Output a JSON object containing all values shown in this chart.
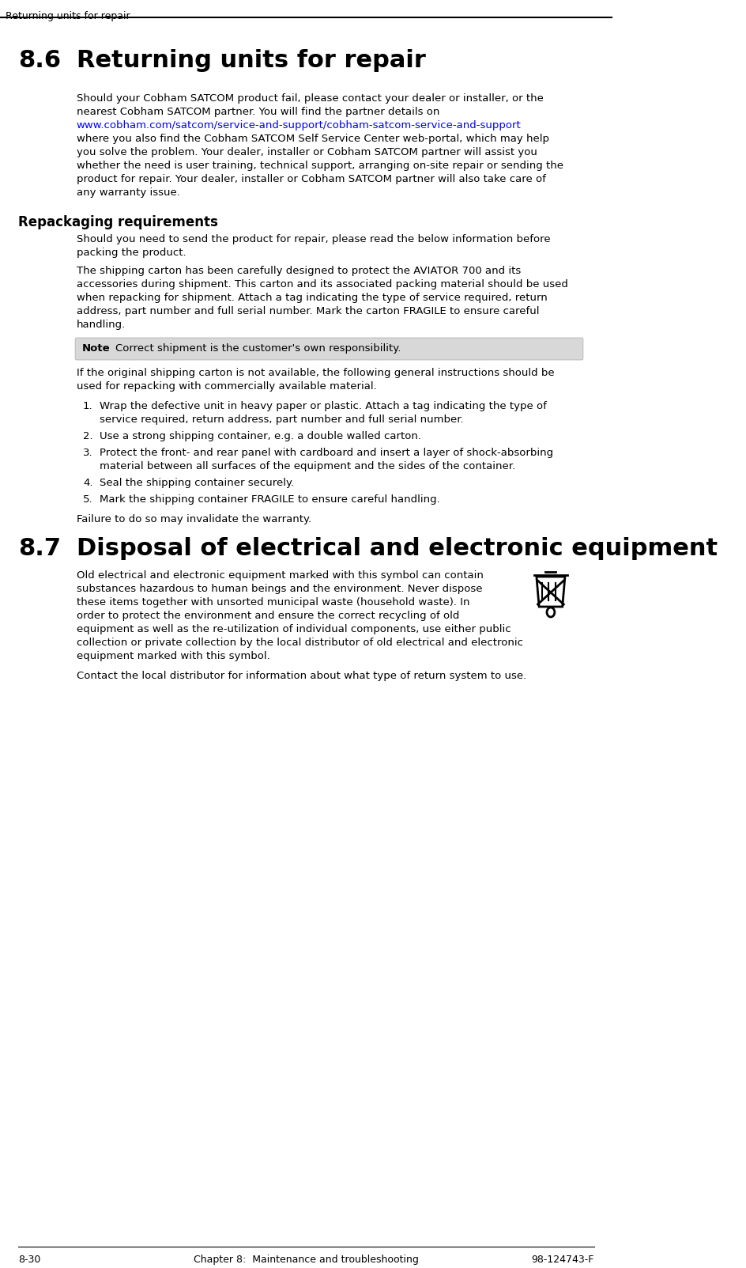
{
  "bg_color": "#ffffff",
  "header_text": "Returning units for repair",
  "header_line_color": "#000000",
  "footer_line_color": "#000000",
  "footer_left": "8-30",
  "footer_center": "Chapter 8:  Maintenance and troubleshooting",
  "footer_right": "98-124743-F",
  "section_86_num": "8.6",
  "section_86_title": "Returning units for repair",
  "section_87_num": "8.7",
  "section_87_title": "Disposal of electrical and electronic equipment",
  "para1": "Should your Cobham SATCOM product fail, please contact your dealer or installer, or the nearest Cobham SATCOM partner. You will find the partner details on",
  "link_text": "www.cobham.com/satcom/service-and-support/cobham-satcom-service-and-support",
  "link_color": "#0000ff",
  "para1_cont": "where you also find the Cobham SATCOM Self Service Center web-portal, which may help you solve the problem. Your dealer, installer or Cobham SATCOM partner will assist you whether the need is user training, technical support, arranging on-site repair or sending the product for repair. Your dealer, installer or Cobham SATCOM partner will also take care of any warranty issue.",
  "repack_heading": "Repackaging requirements",
  "repack_para1": "Should you need to send the product for repair, please read the below information before packing the product.",
  "repack_para2": "The shipping carton has been carefully designed to protect the AVIATOR 700 and its accessories during shipment. This carton and its associated packing material should be used when repacking for shipment. Attach a tag indicating the type of service required, return address, part number and full serial number. Mark the carton FRAGILE to ensure careful handling.",
  "note_label": "Note",
  "note_text": "Correct shipment is the customer's own responsibility.",
  "note_bg": "#e0e0e0",
  "para_after_note": "If the original shipping carton is not available, the following general instructions should be used for repacking with commercially available material.",
  "list_items": [
    "Wrap the defective unit in heavy paper or plastic. Attach a tag indicating the type of service required, return address, part number and full serial number.",
    "Use a strong shipping container, e.g. a double walled carton.",
    "Protect the front- and rear panel with cardboard and insert a layer of shock-absorbing material between all surfaces of the equipment and the sides of the container.",
    "Seal the shipping container securely.",
    "Mark the shipping container FRAGILE to ensure careful handling."
  ],
  "failure_text": "Failure to do so may invalidate the warranty.",
  "disposal_para": "Old electrical and electronic equipment marked with this symbol can contain substances hazardous to human beings and the environment. Never dispose these items together with unsorted municipal waste (household waste). In order to protect the environment and ensure the correct recycling of old equipment as well as the re-utilization of individual components, use either public collection or private collection by the local distributor of old electrical and electronic equipment marked with this symbol.",
  "contact_text": "Contact the local distributor for information about what type of return system to use.",
  "text_color": "#000000",
  "font_family": "DejaVu Sans",
  "body_fontsize": 9.5,
  "heading_fontsize": 22,
  "subheading_fontsize": 12,
  "header_fontsize": 9,
  "footer_fontsize": 9
}
